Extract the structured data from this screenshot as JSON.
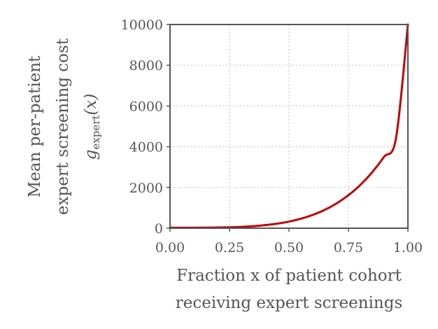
{
  "chart_data": {
    "type": "line",
    "title": "",
    "xlabel_lines": [
      "Fraction x of patient cohort",
      "receiving expert screenings"
    ],
    "ylabel_lines": [
      "Mean per-patient",
      "expert screening cost",
      "g_expert(x)"
    ],
    "ylabel_math": {
      "base": "g",
      "subscript": "expert",
      "argument": "(x)"
    },
    "xlim": [
      0,
      1
    ],
    "ylim": [
      0,
      10000
    ],
    "xticks": [
      0.0,
      0.25,
      0.5,
      0.75,
      1.0
    ],
    "xtick_labels": [
      "0.00",
      "0.25",
      "0.50",
      "0.75",
      "1.00"
    ],
    "yticks": [
      0,
      2000,
      4000,
      6000,
      8000,
      10000
    ],
    "ytick_labels": [
      "0",
      "2000",
      "4000",
      "6000",
      "8000",
      "10000"
    ],
    "grid": true,
    "legend": "none",
    "series": [
      {
        "color": "#c00000",
        "x": [
          0.0,
          0.05,
          0.1,
          0.15,
          0.2,
          0.25,
          0.3,
          0.35,
          0.4,
          0.45,
          0.5,
          0.55,
          0.6,
          0.65,
          0.7,
          0.75,
          0.8,
          0.85,
          0.9,
          0.95,
          1.0
        ],
        "y": [
          20,
          21,
          23,
          26,
          33,
          45,
          66,
          100,
          150,
          223,
          325,
          465,
          652,
          898,
          1216,
          1620,
          2125,
          2749,
          3509,
          4424,
          10000
        ]
      }
    ]
  }
}
